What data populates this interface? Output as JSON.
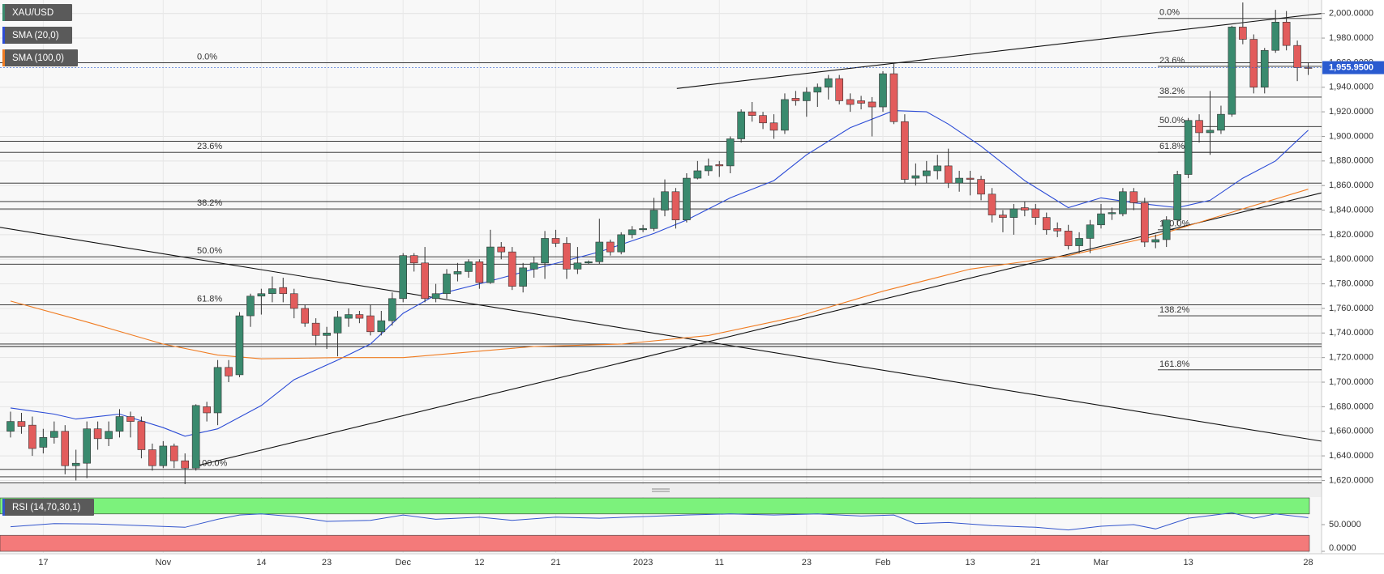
{
  "chart_data": {
    "type": "candlestick",
    "legend": "top-left",
    "grid": true,
    "ylim": [
      1617,
      2011
    ],
    "yticks": [
      {
        "value": 1620,
        "label": "1,620.0000"
      },
      {
        "value": 1640,
        "label": "1,640.0000"
      },
      {
        "value": 1660,
        "label": "1,660.0000"
      },
      {
        "value": 1680,
        "label": "1,680.0000"
      },
      {
        "value": 1700,
        "label": "1,700.0000"
      },
      {
        "value": 1720,
        "label": "1,720.0000"
      },
      {
        "value": 1740,
        "label": "1,740.0000"
      },
      {
        "value": 1760,
        "label": "1,760.0000"
      },
      {
        "value": 1780,
        "label": "1,780.0000"
      },
      {
        "value": 1800,
        "label": "1,800.0000"
      },
      {
        "value": 1820,
        "label": "1,820.0000"
      },
      {
        "value": 1840,
        "label": "1,840.0000"
      },
      {
        "value": 1860,
        "label": "1,860.0000"
      },
      {
        "value": 1880,
        "label": "1,880.0000"
      },
      {
        "value": 1900,
        "label": "1,900.0000"
      },
      {
        "value": 1920,
        "label": "1,920.0000"
      },
      {
        "value": 1940,
        "label": "1,940.0000"
      },
      {
        "value": 1960,
        "label": "1,960.0000"
      },
      {
        "value": 1980,
        "label": "1,980.0000"
      },
      {
        "value": 2000,
        "label": "2,000.0000"
      }
    ],
    "categories": [
      null,
      null,
      null,
      "17",
      null,
      null,
      null,
      null,
      null,
      null,
      null,
      null,
      null,
      null,
      "Nov",
      null,
      null,
      null,
      null,
      null,
      null,
      null,
      null,
      "14",
      null,
      null,
      null,
      null,
      null,
      "23",
      null,
      null,
      null,
      null,
      null,
      null,
      "Dec",
      null,
      null,
      null,
      null,
      null,
      null,
      "12",
      null,
      null,
      null,
      null,
      null,
      null,
      "21",
      null,
      null,
      null,
      null,
      null,
      null,
      null,
      "2023",
      null,
      null,
      null,
      null,
      null,
      null,
      "11",
      null,
      null,
      null,
      null,
      null,
      null,
      null,
      "23",
      null,
      null,
      null,
      null,
      null,
      null,
      "Feb",
      null,
      null,
      null,
      null,
      null,
      null,
      null,
      "13",
      null,
      null,
      null,
      null,
      null,
      "21",
      null,
      null,
      null,
      null,
      null,
      "Mar",
      null,
      null,
      null,
      null,
      null,
      null,
      null,
      "13",
      null,
      null,
      null,
      null,
      null,
      null,
      null,
      null,
      null,
      null,
      "28"
    ],
    "series": [
      {
        "name": "XAU/USD",
        "up_color": "#3a8a6e",
        "down_color": "#e25c5c",
        "open": [
          1660,
          1668,
          1665,
          1647,
          1655,
          1660,
          1632,
          1634,
          1662,
          1654,
          1660,
          1672,
          1668,
          1645,
          1632,
          1648,
          1636,
          1630,
          1680,
          1675,
          1712,
          1706,
          1754,
          1770,
          1772,
          1777,
          1772,
          1760,
          1748,
          1738,
          1740,
          1752,
          1755,
          1754,
          1741,
          1750,
          1768,
          1803,
          1797,
          1768,
          1772,
          1788,
          1790,
          1798,
          1781,
          1810,
          1806,
          1778,
          1792,
          1797,
          1817,
          1813,
          1792,
          1797,
          1798,
          1814,
          1806,
          1820,
          1824,
          1825,
          1840,
          1855,
          1832,
          1866,
          1872,
          1877,
          1876,
          1898,
          1920,
          1917,
          1911,
          1905,
          1931,
          1929,
          1936,
          1940,
          1947,
          1930,
          1929,
          1928,
          1924,
          1951,
          1912,
          1866,
          1868,
          1872,
          1876,
          1862,
          1866,
          1865,
          1853,
          1836,
          1834,
          1842,
          1841,
          1834,
          1825,
          1823,
          1811,
          1817,
          1828,
          1837,
          1837,
          1855,
          1846,
          1814,
          1816,
          1832,
          1869,
          1913,
          1903,
          1905,
          1918,
          1989,
          1979,
          1940,
          1970,
          1993,
          1974,
          1956
        ],
        "high": [
          1676,
          1675,
          1672,
          1662,
          1668,
          1665,
          1645,
          1668,
          1668,
          1668,
          1678,
          1676,
          1672,
          1650,
          1652,
          1650,
          1642,
          1682,
          1684,
          1718,
          1718,
          1757,
          1772,
          1776,
          1786,
          1785,
          1776,
          1763,
          1752,
          1745,
          1758,
          1760,
          1758,
          1763,
          1758,
          1773,
          1805,
          1805,
          1810,
          1780,
          1792,
          1797,
          1800,
          1800,
          1824,
          1814,
          1810,
          1797,
          1802,
          1823,
          1824,
          1818,
          1810,
          1799,
          1833,
          1816,
          1822,
          1827,
          1828,
          1850,
          1865,
          1858,
          1870,
          1880,
          1882,
          1880,
          1900,
          1922,
          1928,
          1920,
          1918,
          1935,
          1937,
          1940,
          1943,
          1950,
          1950,
          1935,
          1933,
          1932,
          1953,
          1960,
          1918,
          1878,
          1880,
          1885,
          1890,
          1872,
          1872,
          1868,
          1858,
          1840,
          1845,
          1847,
          1845,
          1838,
          1830,
          1828,
          1822,
          1832,
          1845,
          1842,
          1858,
          1858,
          1850,
          1820,
          1835,
          1872,
          1915,
          1918,
          1937,
          1925,
          1990,
          2009,
          1983,
          1972,
          2003,
          2002,
          1978,
          1960
        ],
        "low": [
          1655,
          1658,
          1640,
          1642,
          1650,
          1625,
          1620,
          1622,
          1645,
          1648,
          1655,
          1655,
          1638,
          1628,
          1630,
          1630,
          1617,
          1628,
          1668,
          1665,
          1700,
          1704,
          1745,
          1755,
          1765,
          1765,
          1752,
          1745,
          1730,
          1727,
          1721,
          1745,
          1748,
          1738,
          1738,
          1746,
          1765,
          1790,
          1765,
          1765,
          1768,
          1782,
          1785,
          1776,
          1780,
          1800,
          1775,
          1773,
          1785,
          1784,
          1810,
          1784,
          1788,
          1796,
          1796,
          1803,
          1804,
          1817,
          1822,
          1823,
          1835,
          1825,
          1830,
          1865,
          1868,
          1867,
          1870,
          1895,
          1912,
          1906,
          1898,
          1902,
          1925,
          1916,
          1924,
          1930,
          1926,
          1920,
          1922,
          1900,
          1920,
          1910,
          1862,
          1860,
          1862,
          1865,
          1858,
          1855,
          1852,
          1848,
          1830,
          1822,
          1820,
          1835,
          1828,
          1820,
          1818,
          1808,
          1805,
          1805,
          1825,
          1832,
          1835,
          1840,
          1810,
          1809,
          1810,
          1828,
          1866,
          1895,
          1885,
          1902,
          1916,
          1975,
          1935,
          1935,
          1968,
          1970,
          1945,
          1950
        ],
        "close": [
          1668,
          1664,
          1646,
          1655,
          1660,
          1632,
          1634,
          1662,
          1654,
          1660,
          1672,
          1668,
          1645,
          1632,
          1648,
          1636,
          1630,
          1681,
          1675,
          1712,
          1705,
          1754,
          1770,
          1772,
          1776,
          1772,
          1760,
          1748,
          1738,
          1740,
          1753,
          1755,
          1752,
          1741,
          1750,
          1768,
          1803,
          1797,
          1768,
          1772,
          1788,
          1790,
          1798,
          1781,
          1810,
          1806,
          1778,
          1793,
          1797,
          1817,
          1813,
          1792,
          1797,
          1798,
          1814,
          1806,
          1820,
          1824,
          1825,
          1840,
          1855,
          1832,
          1866,
          1872,
          1876,
          1876,
          1898,
          1920,
          1917,
          1911,
          1905,
          1930,
          1929,
          1936,
          1940,
          1947,
          1929,
          1926,
          1927,
          1924,
          1951,
          1912,
          1865,
          1868,
          1872,
          1876,
          1862,
          1866,
          1865,
          1853,
          1836,
          1834,
          1841,
          1840,
          1834,
          1824,
          1823,
          1811,
          1817,
          1828,
          1837,
          1838,
          1855,
          1846,
          1814,
          1816,
          1832,
          1869,
          1913,
          1903,
          1905,
          1918,
          1989,
          1979,
          1940,
          1970,
          1993,
          1974,
          1956,
          1955.95
        ]
      }
    ],
    "overlays": [
      {
        "name": "SMA (20,0)",
        "color": "#2b4bd6",
        "x": [
          0,
          4,
          6,
          10,
          14,
          16,
          19,
          23,
          26,
          30,
          33,
          36,
          39,
          43,
          48,
          54,
          59,
          62,
          66,
          70,
          73,
          77,
          81,
          84,
          86,
          89,
          93,
          97,
          100,
          103,
          107,
          110,
          113,
          116,
          119
        ],
        "values": [
          1679,
          1674,
          1670,
          1674,
          1663,
          1656,
          1662,
          1681,
          1702,
          1718,
          1731,
          1756,
          1771,
          1780,
          1792,
          1806,
          1821,
          1832,
          1850,
          1864,
          1885,
          1907,
          1921,
          1920,
          1910,
          1892,
          1864,
          1842,
          1850,
          1846,
          1842,
          1848,
          1866,
          1880,
          1905
        ]
      },
      {
        "name": "SMA (100,0)",
        "color": "#f07c22",
        "x": [
          0,
          7,
          14,
          19,
          23,
          30,
          36,
          48,
          56,
          64,
          72,
          80,
          88,
          97,
          105,
          113,
          119
        ],
        "values": [
          1766,
          1749,
          1731,
          1722,
          1719,
          1720,
          1720,
          1729,
          1731,
          1738,
          1753,
          1774,
          1792,
          1803,
          1819,
          1841,
          1857
        ]
      }
    ],
    "last_price": {
      "value": 1955.95,
      "label": "1,955.9500"
    },
    "fibonacci": [
      {
        "levels": [
          {
            "label": "0.0%",
            "value": 1960
          },
          {
            "label": "23.6%",
            "value": 1887
          },
          {
            "label": "38.2%",
            "value": 1841
          },
          {
            "label": "50.0%",
            "value": 1802
          },
          {
            "label": "61.8%",
            "value": 1763
          },
          {
            "label": "100.0%",
            "value": 1629
          }
        ]
      },
      {
        "levels": [
          {
            "label": "0.0%",
            "value": 1996
          },
          {
            "label": "23.6%",
            "value": 1957
          },
          {
            "label": "38.2%",
            "value": 1932
          },
          {
            "label": "50.0%",
            "value": 1908
          },
          {
            "label": "61.8%",
            "value": 1887
          },
          {
            "label": "100.0%",
            "value": 1824
          },
          {
            "label": "138.2%",
            "value": 1754
          },
          {
            "label": "161.8%",
            "value": 1710
          }
        ]
      }
    ],
    "horizontal_lines": [
      1896,
      1862,
      1847,
      1796,
      1731,
      1729,
      1623,
      1618
    ],
    "trendlines": [
      {
        "x": [
          61.1,
          120.2
        ],
        "y": [
          1939,
          2000
        ]
      },
      {
        "x": [
          -1,
          120.2
        ],
        "y": [
          1826,
          1652
        ]
      },
      {
        "x": [
          17.1,
          120.2
        ],
        "y": [
          1632,
          1854
        ]
      }
    ],
    "rsi": {
      "name": "RSI (14,70,30,1)",
      "color": "#3355cc",
      "ylim": [
        0,
        100
      ],
      "yticks": [
        {
          "value": 50,
          "label": "50.0000"
        },
        {
          "value": 0,
          "label": "0.0000"
        }
      ],
      "upper": 70,
      "lower": 30,
      "upper_color": "#7cf27c",
      "lower_color": "#f47a7a",
      "x": [
        0,
        4,
        8,
        12,
        16,
        19,
        21,
        23,
        26,
        29,
        33,
        36,
        39,
        43,
        46,
        50,
        54,
        58,
        62,
        66,
        70,
        74,
        78,
        81,
        83,
        86,
        90,
        94,
        97,
        100,
        103,
        105,
        108,
        112,
        114,
        116,
        119
      ],
      "values": [
        46,
        52,
        51,
        48,
        45,
        60,
        68,
        70,
        65,
        56,
        58,
        68,
        60,
        64,
        58,
        64,
        62,
        65,
        68,
        70,
        68,
        70,
        66,
        68,
        52,
        54,
        48,
        45,
        40,
        47,
        50,
        42,
        62,
        72,
        62,
        70,
        63
      ]
    }
  }
}
